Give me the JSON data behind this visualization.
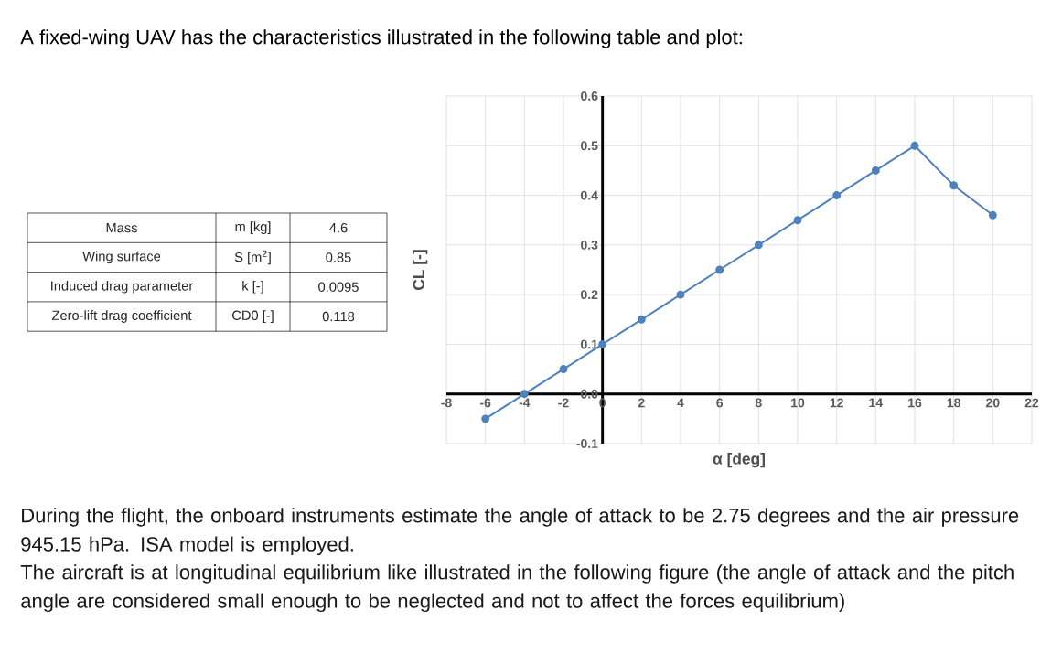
{
  "chart_data": [
    {
      "type": "other",
      "title": "A fixed-wing UAV has the characteristics illustrated in the following table and plot:",
      "annotations": [
        "Mass",
        "m [kg]",
        "4.6",
        "Wing surface",
        "S [m$^{2}$]",
        "0.85",
        "Induced drag parameter",
        "k [-]",
        "0.0095",
        "Zero-lift drag coefficient",
        "CD0 [-]",
        "0.118"
      ]
    },
    {
      "type": "line",
      "xlabel": "α [deg]",
      "ylabel": "CL [-]",
      "x": [
        -6,
        -4,
        -2,
        0,
        2,
        4,
        6,
        8,
        10,
        12,
        14,
        16,
        18,
        20
      ],
      "series": [
        {
          "color": "#4f81bd",
          "values": [
            -0.05,
            0,
            0.05,
            0.1,
            0.15,
            0.2,
            0.25,
            0.3,
            0.35,
            0.4,
            0.45,
            0.5,
            0.42,
            0.36
          ]
        }
      ],
      "xlim": [
        -8,
        22
      ],
      "ylim": [
        -0.1,
        0.6
      ],
      "xticks": [
        -8,
        -6,
        -4,
        -2,
        0,
        2,
        4,
        6,
        8,
        10,
        12,
        14,
        16,
        18,
        20,
        22
      ],
      "yticks": [
        -0.1,
        {
          "value": 0,
          "label": "0.0"
        },
        0.1,
        0.2,
        0.3,
        0.4,
        0.5,
        0.6
      ],
      "grid": true,
      "marker": "circle",
      "annotations": [
        "During the flight, the onboard instruments estimate the angle of attack to be 2.75 degrees and the air pressure 945.15 hPa. ISA model is employed.",
        "The aircraft is at longitudinal equilibrium like illustrated in the following figure (the angle of attack and the pitch angle are considered small enough to be neglected and not to affect the forces equilibrium)"
      ]
    }
  ]
}
